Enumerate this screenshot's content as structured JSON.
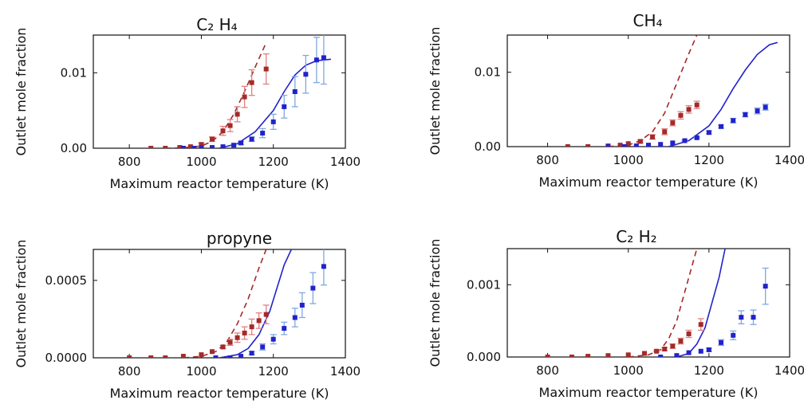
{
  "chart_data": [
    {
      "type": "line",
      "title": "C₂ H₄",
      "xlabel": "Maximum reactor temperature (K)",
      "ylabel": "Outlet mole fraction",
      "xlim": [
        700,
        1400
      ],
      "ylim": [
        0,
        0.015
      ],
      "xticks": [
        800,
        1000,
        1200,
        1400
      ],
      "yticks": [
        0.0,
        0.01
      ],
      "ytick_labels": [
        "0.00",
        "0.01"
      ],
      "colors": {
        "red": "#a52a2a",
        "blue": "#2222cc",
        "red_err": "#e08080",
        "blue_err": "#7fa8e0"
      },
      "series": [
        {
          "kind": "line",
          "style": "dashed",
          "color": "red",
          "x": [
            900,
            950,
            1000,
            1030,
            1060,
            1090,
            1120,
            1150,
            1180
          ],
          "y": [
            0.0,
            5e-05,
            0.0003,
            0.0009,
            0.0022,
            0.0045,
            0.0075,
            0.0108,
            0.014
          ]
        },
        {
          "kind": "line",
          "style": "solid",
          "color": "blue",
          "x": [
            1050,
            1100,
            1150,
            1200,
            1230,
            1260,
            1290,
            1320,
            1360
          ],
          "y": [
            0.0,
            0.0006,
            0.0022,
            0.005,
            0.0075,
            0.0097,
            0.011,
            0.0116,
            0.0118
          ]
        },
        {
          "kind": "points",
          "color": "red",
          "x": [
            860,
            900,
            940,
            970,
            1000,
            1030,
            1060,
            1080,
            1100,
            1120,
            1140,
            1180
          ],
          "y": [
            0.0,
            0.0,
            0.0001,
            0.0002,
            0.0005,
            0.0012,
            0.0023,
            0.003,
            0.0045,
            0.0068,
            0.0087,
            0.0105
          ],
          "err": [
            0,
            0,
            0,
            0,
            0.0002,
            0.0003,
            0.0006,
            0.0008,
            0.001,
            0.0014,
            0.0017,
            0.002
          ]
        },
        {
          "kind": "points",
          "color": "blue",
          "x": [
            950,
            980,
            1000,
            1030,
            1060,
            1090,
            1110,
            1140,
            1170,
            1200,
            1230,
            1260,
            1290,
            1320,
            1340
          ],
          "y": [
            0.0,
            0.0,
            5e-05,
            0.0001,
            0.0002,
            0.0004,
            0.0007,
            0.0012,
            0.002,
            0.0035,
            0.0055,
            0.0075,
            0.0098,
            0.0117,
            0.012
          ],
          "err": [
            0,
            0,
            0,
            0,
            0,
            0.0001,
            0.0002,
            0.0003,
            0.0006,
            0.001,
            0.0015,
            0.002,
            0.0025,
            0.003,
            0.0035
          ]
        }
      ]
    },
    {
      "type": "line",
      "title": "CH₄",
      "xlabel": "Maximum reactor temperature (K)",
      "ylabel": "Outlet mole fraction",
      "xlim": [
        700,
        1400
      ],
      "ylim": [
        0,
        0.015
      ],
      "xticks": [
        800,
        1000,
        1200,
        1400
      ],
      "yticks": [
        0.0,
        0.01
      ],
      "ytick_labels": [
        "0.00",
        "0.01"
      ],
      "series": [
        {
          "kind": "line",
          "style": "dashed",
          "color": "red",
          "x": [
            950,
            1000,
            1030,
            1060,
            1090,
            1120,
            1150,
            1170
          ],
          "y": [
            0.0,
            0.0002,
            0.0008,
            0.002,
            0.0045,
            0.0085,
            0.0125,
            0.015
          ]
        },
        {
          "kind": "line",
          "style": "solid",
          "color": "blue",
          "x": [
            1100,
            1150,
            1200,
            1230,
            1260,
            1290,
            1320,
            1350,
            1370
          ],
          "y": [
            0.0,
            0.0008,
            0.0028,
            0.005,
            0.0078,
            0.0103,
            0.0124,
            0.0137,
            0.014
          ]
        },
        {
          "kind": "points",
          "color": "red",
          "x": [
            850,
            900,
            950,
            980,
            1000,
            1030,
            1060,
            1090,
            1110,
            1130,
            1150,
            1170
          ],
          "y": [
            0.0,
            0.0,
            0.0001,
            0.0002,
            0.0004,
            0.0007,
            0.0013,
            0.002,
            0.0032,
            0.0042,
            0.005,
            0.0056
          ],
          "err": [
            0,
            0,
            0,
            0,
            0,
            0.0002,
            0.0003,
            0.0004,
            0.0004,
            0.0005,
            0.0005,
            0.0005
          ]
        },
        {
          "kind": "points",
          "color": "blue",
          "x": [
            950,
            990,
            1020,
            1050,
            1080,
            1110,
            1140,
            1170,
            1200,
            1230,
            1260,
            1290,
            1320,
            1340
          ],
          "y": [
            0.0,
            0.0,
            0.0001,
            0.0002,
            0.0003,
            0.0005,
            0.0008,
            0.0012,
            0.0019,
            0.0027,
            0.0035,
            0.0043,
            0.0048,
            0.0053
          ],
          "err": [
            0,
            0,
            0,
            0,
            0,
            0,
            0.0001,
            0.0001,
            0.0002,
            0.0002,
            0.0003,
            0.0003,
            0.0004,
            0.0004
          ]
        }
      ]
    },
    {
      "type": "line",
      "title": "propyne",
      "xlabel": "Maximum reactor temperature (K)",
      "ylabel": "Outlet mole fraction",
      "xlim": [
        700,
        1400
      ],
      "ylim": [
        0,
        0.0007
      ],
      "xticks": [
        800,
        1000,
        1200,
        1400
      ],
      "yticks": [
        0.0,
        0.0005
      ],
      "ytick_labels": [
        "0.0000",
        "0.0005"
      ],
      "series": [
        {
          "kind": "line",
          "style": "dashed",
          "color": "red",
          "x": [
            950,
            1000,
            1040,
            1070,
            1100,
            1130,
            1160,
            1180
          ],
          "y": [
            0.0,
            1e-05,
            4e-05,
            0.0001,
            0.00022,
            0.00038,
            0.00058,
            0.0007
          ]
        },
        {
          "kind": "line",
          "style": "solid",
          "color": "blue",
          "x": [
            1050,
            1100,
            1130,
            1160,
            1190,
            1210,
            1230,
            1250
          ],
          "y": [
            0.0,
            2e-05,
            6e-05,
            0.00015,
            0.0003,
            0.00045,
            0.0006,
            0.0007
          ]
        },
        {
          "kind": "points",
          "color": "red",
          "x": [
            800,
            860,
            900,
            950,
            1000,
            1030,
            1060,
            1080,
            1100,
            1120,
            1140,
            1160,
            1180
          ],
          "y": [
            0.0,
            0.0,
            0.0,
            1e-05,
            2e-05,
            4e-05,
            7e-05,
            0.0001,
            0.00013,
            0.00016,
            0.0002,
            0.00024,
            0.00028
          ],
          "err": [
            0,
            0,
            0,
            0,
            0,
            0,
            1e-05,
            2e-05,
            3e-05,
            4e-05,
            5e-05,
            5e-05,
            6e-05
          ]
        },
        {
          "kind": "points",
          "color": "blue",
          "x": [
            1040,
            1080,
            1110,
            1140,
            1170,
            1200,
            1230,
            1260,
            1280,
            1310,
            1340
          ],
          "y": [
            0.0,
            0.0,
            1e-05,
            3e-05,
            7e-05,
            0.00012,
            0.00019,
            0.00026,
            0.00034,
            0.00045,
            0.00059
          ],
          "err": [
            0,
            0,
            0,
            1e-05,
            2e-05,
            3e-05,
            4e-05,
            6e-05,
            8e-05,
            0.0001,
            0.00012
          ]
        }
      ]
    },
    {
      "type": "line",
      "title": "C₂ H₂",
      "xlabel": "Maximum reactor temperature (K)",
      "ylabel": "Outlet mole fraction",
      "xlim": [
        700,
        1400
      ],
      "ylim": [
        0,
        0.0015
      ],
      "xticks": [
        800,
        1000,
        1200,
        1400
      ],
      "yticks": [
        0.0,
        0.001
      ],
      "ytick_labels": [
        "0.000",
        "0.001"
      ],
      "series": [
        {
          "kind": "line",
          "style": "dashed",
          "color": "red",
          "x": [
            1000,
            1050,
            1080,
            1100,
            1120,
            1140,
            1160,
            1170
          ],
          "y": [
            0.0,
            3e-05,
            0.0001,
            0.00025,
            0.0005,
            0.0009,
            0.0013,
            0.0015
          ]
        },
        {
          "kind": "line",
          "style": "solid",
          "color": "blue",
          "x": [
            1120,
            1150,
            1170,
            1190,
            1210,
            1225,
            1240
          ],
          "y": [
            0.0,
            5e-05,
            0.00018,
            0.0004,
            0.0008,
            0.0011,
            0.0015
          ]
        },
        {
          "kind": "points",
          "color": "red",
          "x": [
            800,
            860,
            900,
            950,
            1000,
            1040,
            1070,
            1090,
            1110,
            1130,
            1150,
            1180
          ],
          "y": [
            0.0,
            0.0,
            1e-05,
            2e-05,
            3e-05,
            5e-05,
            8e-05,
            0.00011,
            0.00015,
            0.00022,
            0.00032,
            0.00045
          ],
          "err": [
            0,
            0,
            0,
            0,
            0,
            0,
            1e-05,
            2e-05,
            3e-05,
            4e-05,
            5e-05,
            8e-05
          ]
        },
        {
          "kind": "points",
          "color": "blue",
          "x": [
            1080,
            1120,
            1150,
            1180,
            1200,
            1230,
            1260,
            1280,
            1310,
            1340
          ],
          "y": [
            0.0,
            2e-05,
            6e-05,
            8e-05,
            0.0001,
            0.0002,
            0.0003,
            0.00055,
            0.00055,
            0.00098
          ],
          "err": [
            0,
            0,
            0,
            0,
            2e-05,
            4e-05,
            6e-05,
            9e-05,
            0.0001,
            0.00025
          ]
        }
      ]
    }
  ]
}
